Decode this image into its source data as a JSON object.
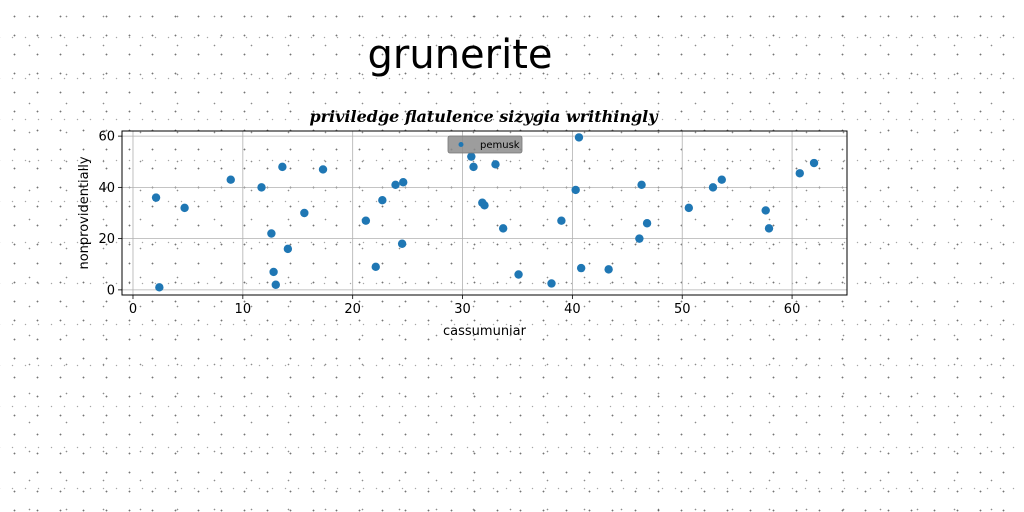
{
  "page_title": "grunerite",
  "chart_data": {
    "type": "scatter",
    "title": "priviledge flatulence sizygia writhingly",
    "xlabel": "cassumuniar",
    "ylabel": "nonprovidentially",
    "xlim": [
      -1,
      65
    ],
    "ylim": [
      -2,
      62
    ],
    "xticks": [
      0,
      10,
      20,
      30,
      40,
      50,
      60
    ],
    "yticks": [
      0,
      20,
      40,
      60
    ],
    "grid": true,
    "legend_position": "top-center",
    "series": [
      {
        "name": "pemusk",
        "color": "#1f77b4",
        "points": [
          [
            2.1,
            36
          ],
          [
            2.4,
            1
          ],
          [
            4.7,
            32
          ],
          [
            8.9,
            43
          ],
          [
            11.7,
            40
          ],
          [
            12.6,
            22
          ],
          [
            12.8,
            7
          ],
          [
            13.0,
            2
          ],
          [
            13.6,
            48
          ],
          [
            14.1,
            16
          ],
          [
            15.6,
            30
          ],
          [
            17.3,
            47
          ],
          [
            21.2,
            27
          ],
          [
            22.1,
            9
          ],
          [
            22.7,
            35
          ],
          [
            23.9,
            41
          ],
          [
            24.5,
            18
          ],
          [
            24.6,
            42
          ],
          [
            30.8,
            52
          ],
          [
            31.0,
            48
          ],
          [
            31.8,
            34
          ],
          [
            32.0,
            33
          ],
          [
            33.0,
            49
          ],
          [
            33.7,
            24
          ],
          [
            35.1,
            6
          ],
          [
            38.1,
            2.5
          ],
          [
            39.0,
            27
          ],
          [
            40.3,
            39
          ],
          [
            40.6,
            59.5
          ],
          [
            40.8,
            8.5
          ],
          [
            43.3,
            8
          ],
          [
            46.1,
            20
          ],
          [
            46.3,
            41
          ],
          [
            46.8,
            26
          ],
          [
            50.6,
            32
          ],
          [
            52.8,
            40
          ],
          [
            53.6,
            43
          ],
          [
            57.6,
            31
          ],
          [
            57.9,
            24
          ],
          [
            60.7,
            45.5
          ],
          [
            62.0,
            49.5
          ]
        ]
      }
    ]
  }
}
